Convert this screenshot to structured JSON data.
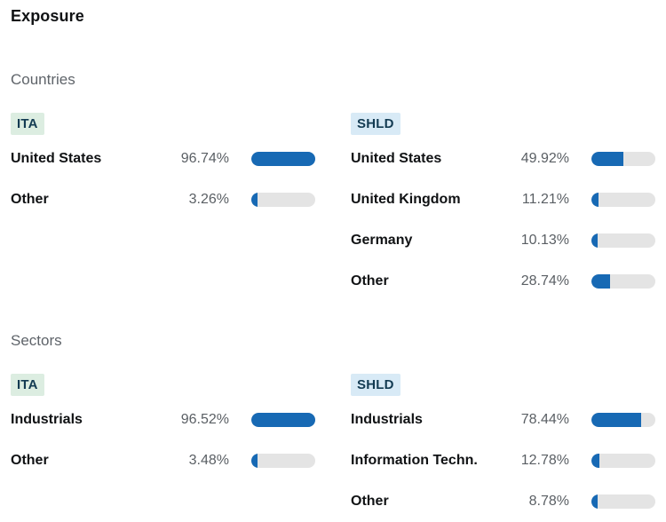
{
  "title": "Exposure",
  "colors": {
    "bar_fill": "#1769b4",
    "bar_track": "#e4e4e4",
    "ita_badge_bg": "#dcede1",
    "shld_badge_bg": "#d8eaf6",
    "badge_text": "#133b52"
  },
  "sections": [
    {
      "label": "Countries",
      "panels": [
        {
          "ticker": "ITA",
          "badge": "green",
          "rows": [
            {
              "label": "United States",
              "percent": "96.74%",
              "value": 96.74
            },
            {
              "label": "Other",
              "percent": "3.26%",
              "value": 3.26
            }
          ]
        },
        {
          "ticker": "SHLD",
          "badge": "blue",
          "rows": [
            {
              "label": "United States",
              "percent": "49.92%",
              "value": 49.92
            },
            {
              "label": "United Kingdom",
              "percent": "11.21%",
              "value": 11.21
            },
            {
              "label": "Germany",
              "percent": "10.13%",
              "value": 10.13
            },
            {
              "label": "Other",
              "percent": "28.74%",
              "value": 28.74
            }
          ]
        }
      ]
    },
    {
      "label": "Sectors",
      "panels": [
        {
          "ticker": "ITA",
          "badge": "green",
          "rows": [
            {
              "label": "Industrials",
              "percent": "96.52%",
              "value": 96.52
            },
            {
              "label": "Other",
              "percent": "3.48%",
              "value": 3.48
            }
          ]
        },
        {
          "ticker": "SHLD",
          "badge": "blue",
          "rows": [
            {
              "label": "Industrials",
              "percent": "78.44%",
              "value": 78.44
            },
            {
              "label": "Information Techn.",
              "percent": "12.78%",
              "value": 12.78
            },
            {
              "label": "Other",
              "percent": "8.78%",
              "value": 8.78
            }
          ]
        }
      ]
    }
  ]
}
